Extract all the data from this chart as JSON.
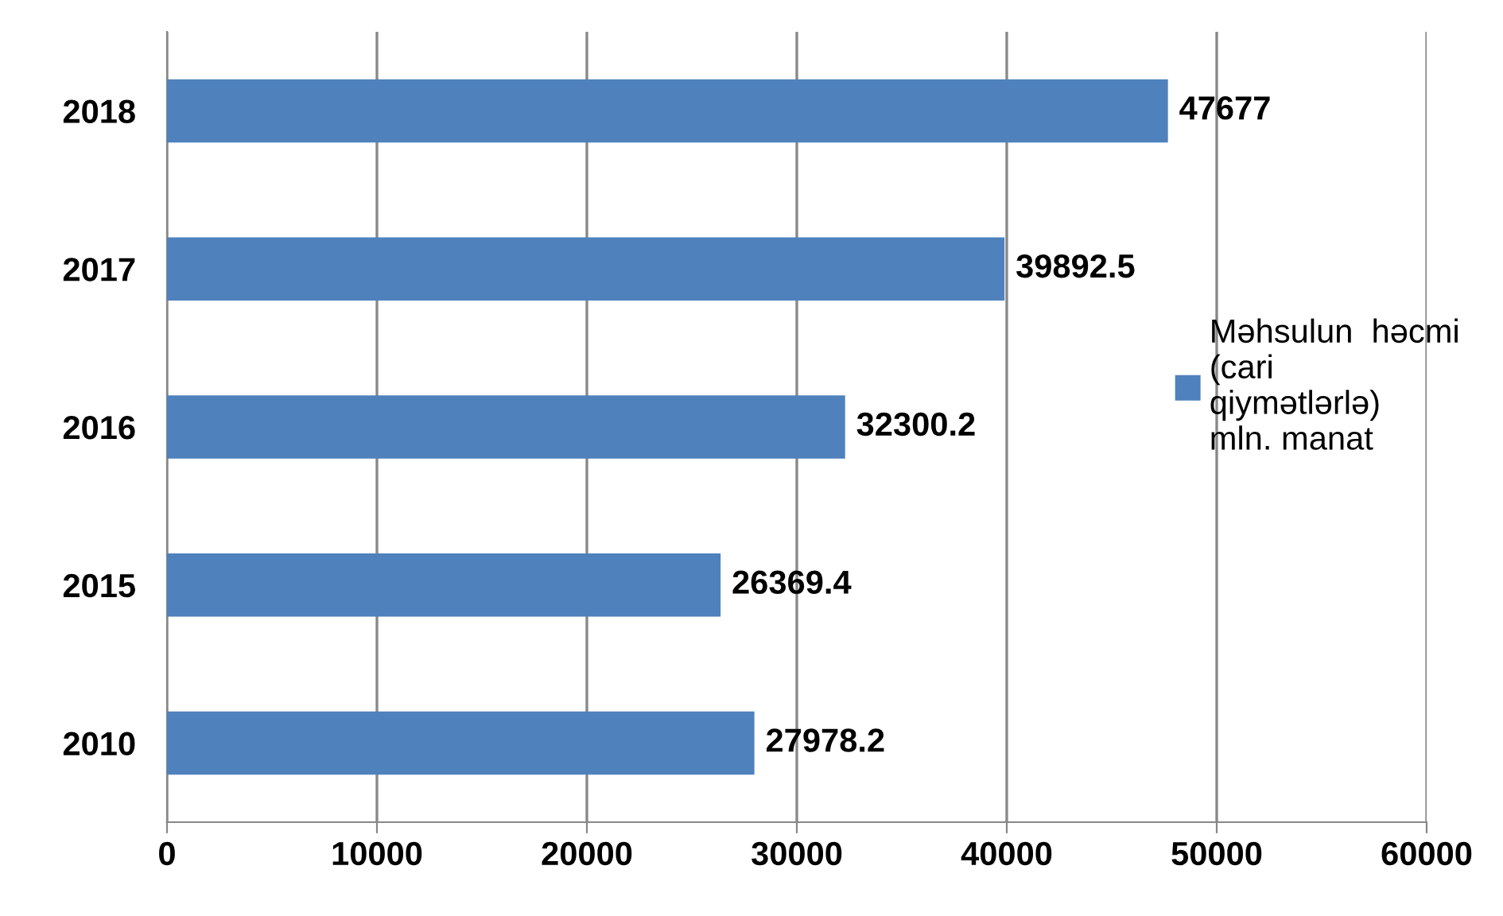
{
  "chart_data": {
    "type": "bar",
    "orientation": "horizontal",
    "categories": [
      "2018",
      "2017",
      "2016",
      "2015",
      "2010"
    ],
    "series": [
      {
        "name": "Məhsulun  həcmi (cari qiymətlərlə) mln. manat",
        "color": "#4f81bd",
        "values": [
          47677,
          39892.5,
          32300.2,
          26369.4,
          27978.2
        ]
      }
    ],
    "value_labels": [
      "47677",
      "39892.5",
      "32300.2",
      "26369.4",
      "27978.2"
    ],
    "xlim": [
      0,
      60000
    ],
    "xticks": [
      0,
      10000,
      20000,
      30000,
      40000,
      50000,
      60000
    ],
    "grid": "x",
    "legend": "right"
  }
}
